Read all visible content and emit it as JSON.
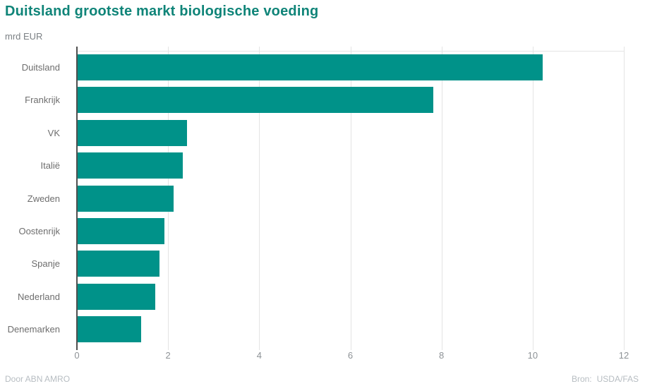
{
  "header": {
    "title": "Duitsland grootste markt biologische voeding",
    "subtitle": "mrd EUR"
  },
  "footer": {
    "credit": "Door ABN AMRO",
    "source_label": "Bron:",
    "source_value": "USDA/FAS"
  },
  "colors": {
    "bar": "#009289",
    "title": "#0f8478",
    "gridline": "#e4e4e4",
    "axis_line": "#4f4f4f",
    "category_label": "#6e6e6e",
    "tick_label": "#8d9296",
    "footer_text": "#b7bdc2"
  },
  "chart_data": {
    "type": "bar",
    "orientation": "horizontal",
    "title": "Duitsland grootste markt biologische voeding",
    "xlabel": "",
    "ylabel": "mrd EUR",
    "categories": [
      "Duitsland",
      "Frankrijk",
      "VK",
      "Italië",
      "Zweden",
      "Oostenrijk",
      "Spanje",
      "Nederland",
      "Denemarken"
    ],
    "values": [
      10.2,
      7.8,
      2.4,
      2.3,
      2.1,
      1.9,
      1.8,
      1.7,
      1.4
    ],
    "xlim": [
      0,
      12
    ],
    "xticks": [
      0,
      2,
      4,
      6,
      8,
      10,
      12
    ],
    "grid": true,
    "legend": false
  }
}
